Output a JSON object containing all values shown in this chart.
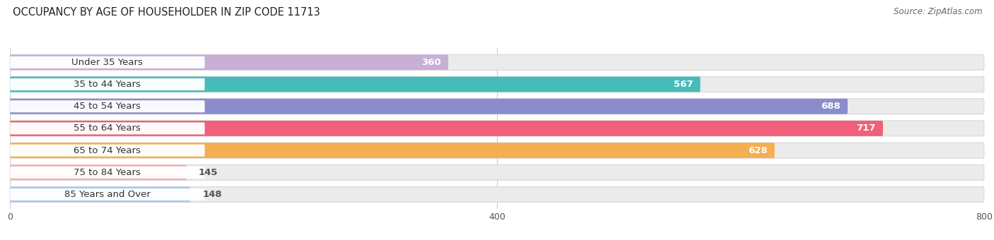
{
  "title": "OCCUPANCY BY AGE OF HOUSEHOLDER IN ZIP CODE 11713",
  "source": "Source: ZipAtlas.com",
  "categories": [
    "Under 35 Years",
    "35 to 44 Years",
    "45 to 54 Years",
    "55 to 64 Years",
    "65 to 74 Years",
    "75 to 84 Years",
    "85 Years and Over"
  ],
  "values": [
    360,
    567,
    688,
    717,
    628,
    145,
    148
  ],
  "bar_colors": [
    "#c8afd6",
    "#45bcba",
    "#8b8ccc",
    "#f0607a",
    "#f5ae52",
    "#f0b0b0",
    "#a8c8f0"
  ],
  "bar_bg_color": "#ebebeb",
  "bar_bg_border_color": "#d8d8d8",
  "xlim": [
    0,
    800
  ],
  "xticks": [
    0,
    400,
    800
  ],
  "background_color": "#ffffff",
  "title_fontsize": 10.5,
  "source_fontsize": 8.5,
  "label_fontsize": 9.5,
  "value_fontsize": 9.5,
  "bar_height": 0.7,
  "fig_width": 14.06,
  "fig_height": 3.4
}
